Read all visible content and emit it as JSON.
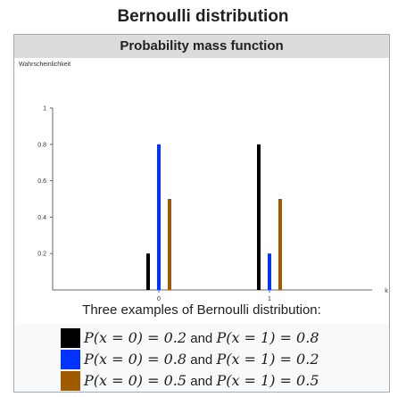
{
  "page_title": "Bernoulli distribution",
  "infobox": {
    "header": "Probability mass function",
    "caption": "Three examples of Bernoulli distribution:",
    "legend": [
      {
        "color": "#000000",
        "left": "P(x = 0) = 0.2",
        "joiner": "and",
        "right": "P(x = 1) = 0.8"
      },
      {
        "color": "#0033ff",
        "left": "P(x = 0) = 0.8",
        "joiner": "and",
        "right": "P(x = 1) = 0.2"
      },
      {
        "color": "#a05a00",
        "left": "P(x = 0) = 0.5",
        "joiner": "and",
        "right": "P(x = 1) = 0.5"
      }
    ]
  },
  "chart_data": {
    "type": "bar",
    "title": "",
    "xlabel": "k",
    "ylabel": "Wahrscheinlichkeit",
    "categories": [
      "0",
      "1"
    ],
    "ylim": [
      0,
      1
    ],
    "yticks": [
      "1",
      "0.8",
      "0.6",
      "0.4",
      "0.2"
    ],
    "grid": false,
    "series": [
      {
        "color": "#000000",
        "values": [
          0.2,
          0.8
        ]
      },
      {
        "color": "#0033ff",
        "values": [
          0.8,
          0.2
        ]
      },
      {
        "color": "#a05a00",
        "values": [
          0.5,
          0.5
        ]
      }
    ]
  }
}
